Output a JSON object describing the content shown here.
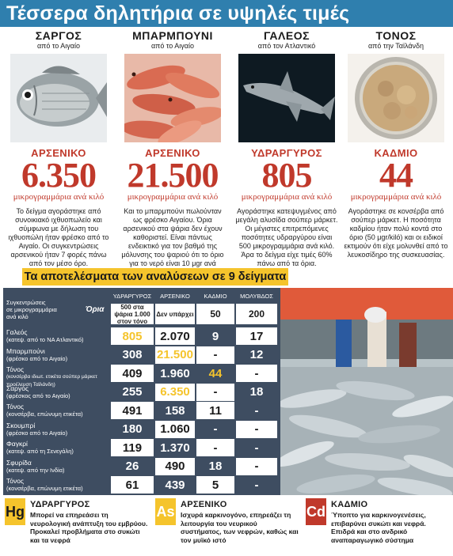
{
  "title": "Τέσσερα δηλητήρια σε υψηλές τιμές",
  "unit_text": "μικρογραμμάρια ανά κιλό",
  "fish": [
    {
      "name": "ΣΑΡΓΟΣ",
      "origin": "από το Αιγαίο",
      "element": "ΑΡΣΕΝΙΚΟ",
      "value": "6.350",
      "desc": "Το δείγμα αγοράστηκε από συνοικιακό ιχθυοπωλείο και σύμφωνα με δήλωση του ιχθυοπώλη ήταν φρέσκο από το Αιγαίο. Οι συγκεντρώσεις αρσενικού ήταν 7 φορές πάνω από τον μέσο όρο."
    },
    {
      "name": "ΜΠΑΡΜΠΟΥΝΙ",
      "origin": "από το Αιγαίο",
      "element": "ΑΡΣΕΝΙΚΟ",
      "value": "21.500",
      "desc": "Και το μπαρμπούνι πωλούνταν ως φρέσκο Αιγαίου. Όρια αρσενικού στα ψάρια δεν έχουν καθοριστεί. Είναι πάντως ενδεικτικό για τον βαθμό της μόλυνσης του ψαριού ότι το όριο για το νερό είναι 10 μgr ανά λίτρο."
    },
    {
      "name": "ΓΑΛΕΟΣ",
      "origin": "από τον Ατλαντικό",
      "element": "ΥΔΡΑΡΓΥΡΟΣ",
      "value": "805",
      "desc": "Αγοράστηκε κατεψυγμένος από μεγάλη αλυσίδα σούπερ μάρκετ. Οι μέγιστες επιτρεπόμενες ποσότητες υδραργύρου είναι 500 μικρογραμμάρια ανά κιλό. Άρα το δείγμα είχε τιμές 60% πάνω από τα όρια."
    },
    {
      "name": "ΤΟΝΟΣ",
      "origin": "από την Ταϊλάνδη",
      "element": "ΚΑΔΜΙΟ",
      "value": "44",
      "desc": "Αγοράστηκε σε κονσέρβα από σούπερ μάρκετ. Η ποσότητα καδμίου ήταν πολύ κοντά στο όριο (50 μgr/kilό) και οι ειδικοί εκτιμούν ότι είχε μολυνθεί από το λευκοσίδηρο της συσκευασίας."
    }
  ],
  "results": {
    "title": "Τα αποτελέσματα των αναλύσεων σε 9 δείγματα",
    "concentration_label_1": "Συγκεντρώσεις",
    "concentration_label_2": "σε μικρογραμμάρια",
    "concentration_label_3": "ανά κιλό",
    "limits_label": "Όρια",
    "headers": [
      "ΥΔΡΑΡΓΥΡΟΣ",
      "ΑΡΣΕΝΙΚΟ",
      "ΚΑΔΜΙΟ",
      "ΜΟΛΥΒΔΟΣ"
    ],
    "limits": [
      "500 στα ψάρια 1.000 στον τόνο",
      "Δεν υπάρχει",
      "50",
      "200"
    ],
    "rows": [
      {
        "name": "Γαλεός",
        "sub": "(κατεψ. από το ΝΑ Ατλαντικό)",
        "values": [
          "805",
          "2.070",
          "9",
          "17"
        ]
      },
      {
        "name": "Μπαρμπούνι",
        "sub": "(φρέσκο από το Αιγαίο)",
        "values": [
          "308",
          "21.500",
          "-",
          "12"
        ]
      },
      {
        "name": "Τόνος",
        "sub": "(κονσέρβα ιδιωτ. ετικέτα σούπερ μάρκετ προέλευση Ταϊλάνδη)",
        "values": [
          "409",
          "1.960",
          "44",
          "-"
        ]
      },
      {
        "name": "Σαργός",
        "sub": "(φρέσκος από το Αιγαίο)",
        "values": [
          "255",
          "6.350",
          "-",
          "18"
        ]
      },
      {
        "name": "Τόνος",
        "sub": "(κονσέρβα, επώνυμη ετικέτα)",
        "values": [
          "491",
          "158",
          "11",
          "-"
        ]
      },
      {
        "name": "Σκουμπρί",
        "sub": "(φρέσκο από το Αιγαίο)",
        "values": [
          "180",
          "1.060",
          "-",
          "-"
        ]
      },
      {
        "name": "Φαγκρί",
        "sub": "(κατεψ. από τη Σενεγάλη)",
        "values": [
          "119",
          "1.370",
          "-",
          "-"
        ]
      },
      {
        "name": "Σφυρίδα",
        "sub": "(κατεψ. από την Ινδία)",
        "values": [
          "26",
          "490",
          "18",
          "-"
        ]
      },
      {
        "name": "Τόνος",
        "sub": "(κονσέρβα, επώνυμη ετικέτα)",
        "values": [
          "61",
          "439",
          "5",
          "-"
        ]
      }
    ]
  },
  "legend": [
    {
      "symbol": "Hg",
      "name": "ΥΔΡΑΡΓΥΡΟΣ",
      "text": "Μπορεί να επηρεάσει τη νευρολογική ανάπτυξη του εμβρύου. Προκαλεί προβλήματα στο συκώτι και τα νεφρά",
      "bg": "#f5c42c",
      "fg": "#1a1a1a"
    },
    {
      "symbol": "As",
      "name": "ΑΡΣΕΝΙΚΟ",
      "text": "Ισχυρά καρκινογόνο, επηρεάζει τη λειτουργία του νευρικού συστήματος, των νεφρών, καθώς και τον μυϊκό ιστό",
      "bg": "#f5c42c",
      "fg": "#ffffff"
    },
    {
      "symbol": "Cd",
      "name": "ΚΑΔΜΙΟ",
      "text": "Ύποπτο για καρκινογενέσεις, επιβαρύνει συκώτι και νεφρά. Επιδρά και στο ανδρικό αναπαραγωγικό σύστημα",
      "bg": "#c0392b",
      "fg": "#ffffff"
    }
  ],
  "colors": {
    "title_bar": "#2f7fae",
    "red": "#c0392b",
    "yellow": "#f5c42c",
    "table_bg": "#3e4d61"
  }
}
